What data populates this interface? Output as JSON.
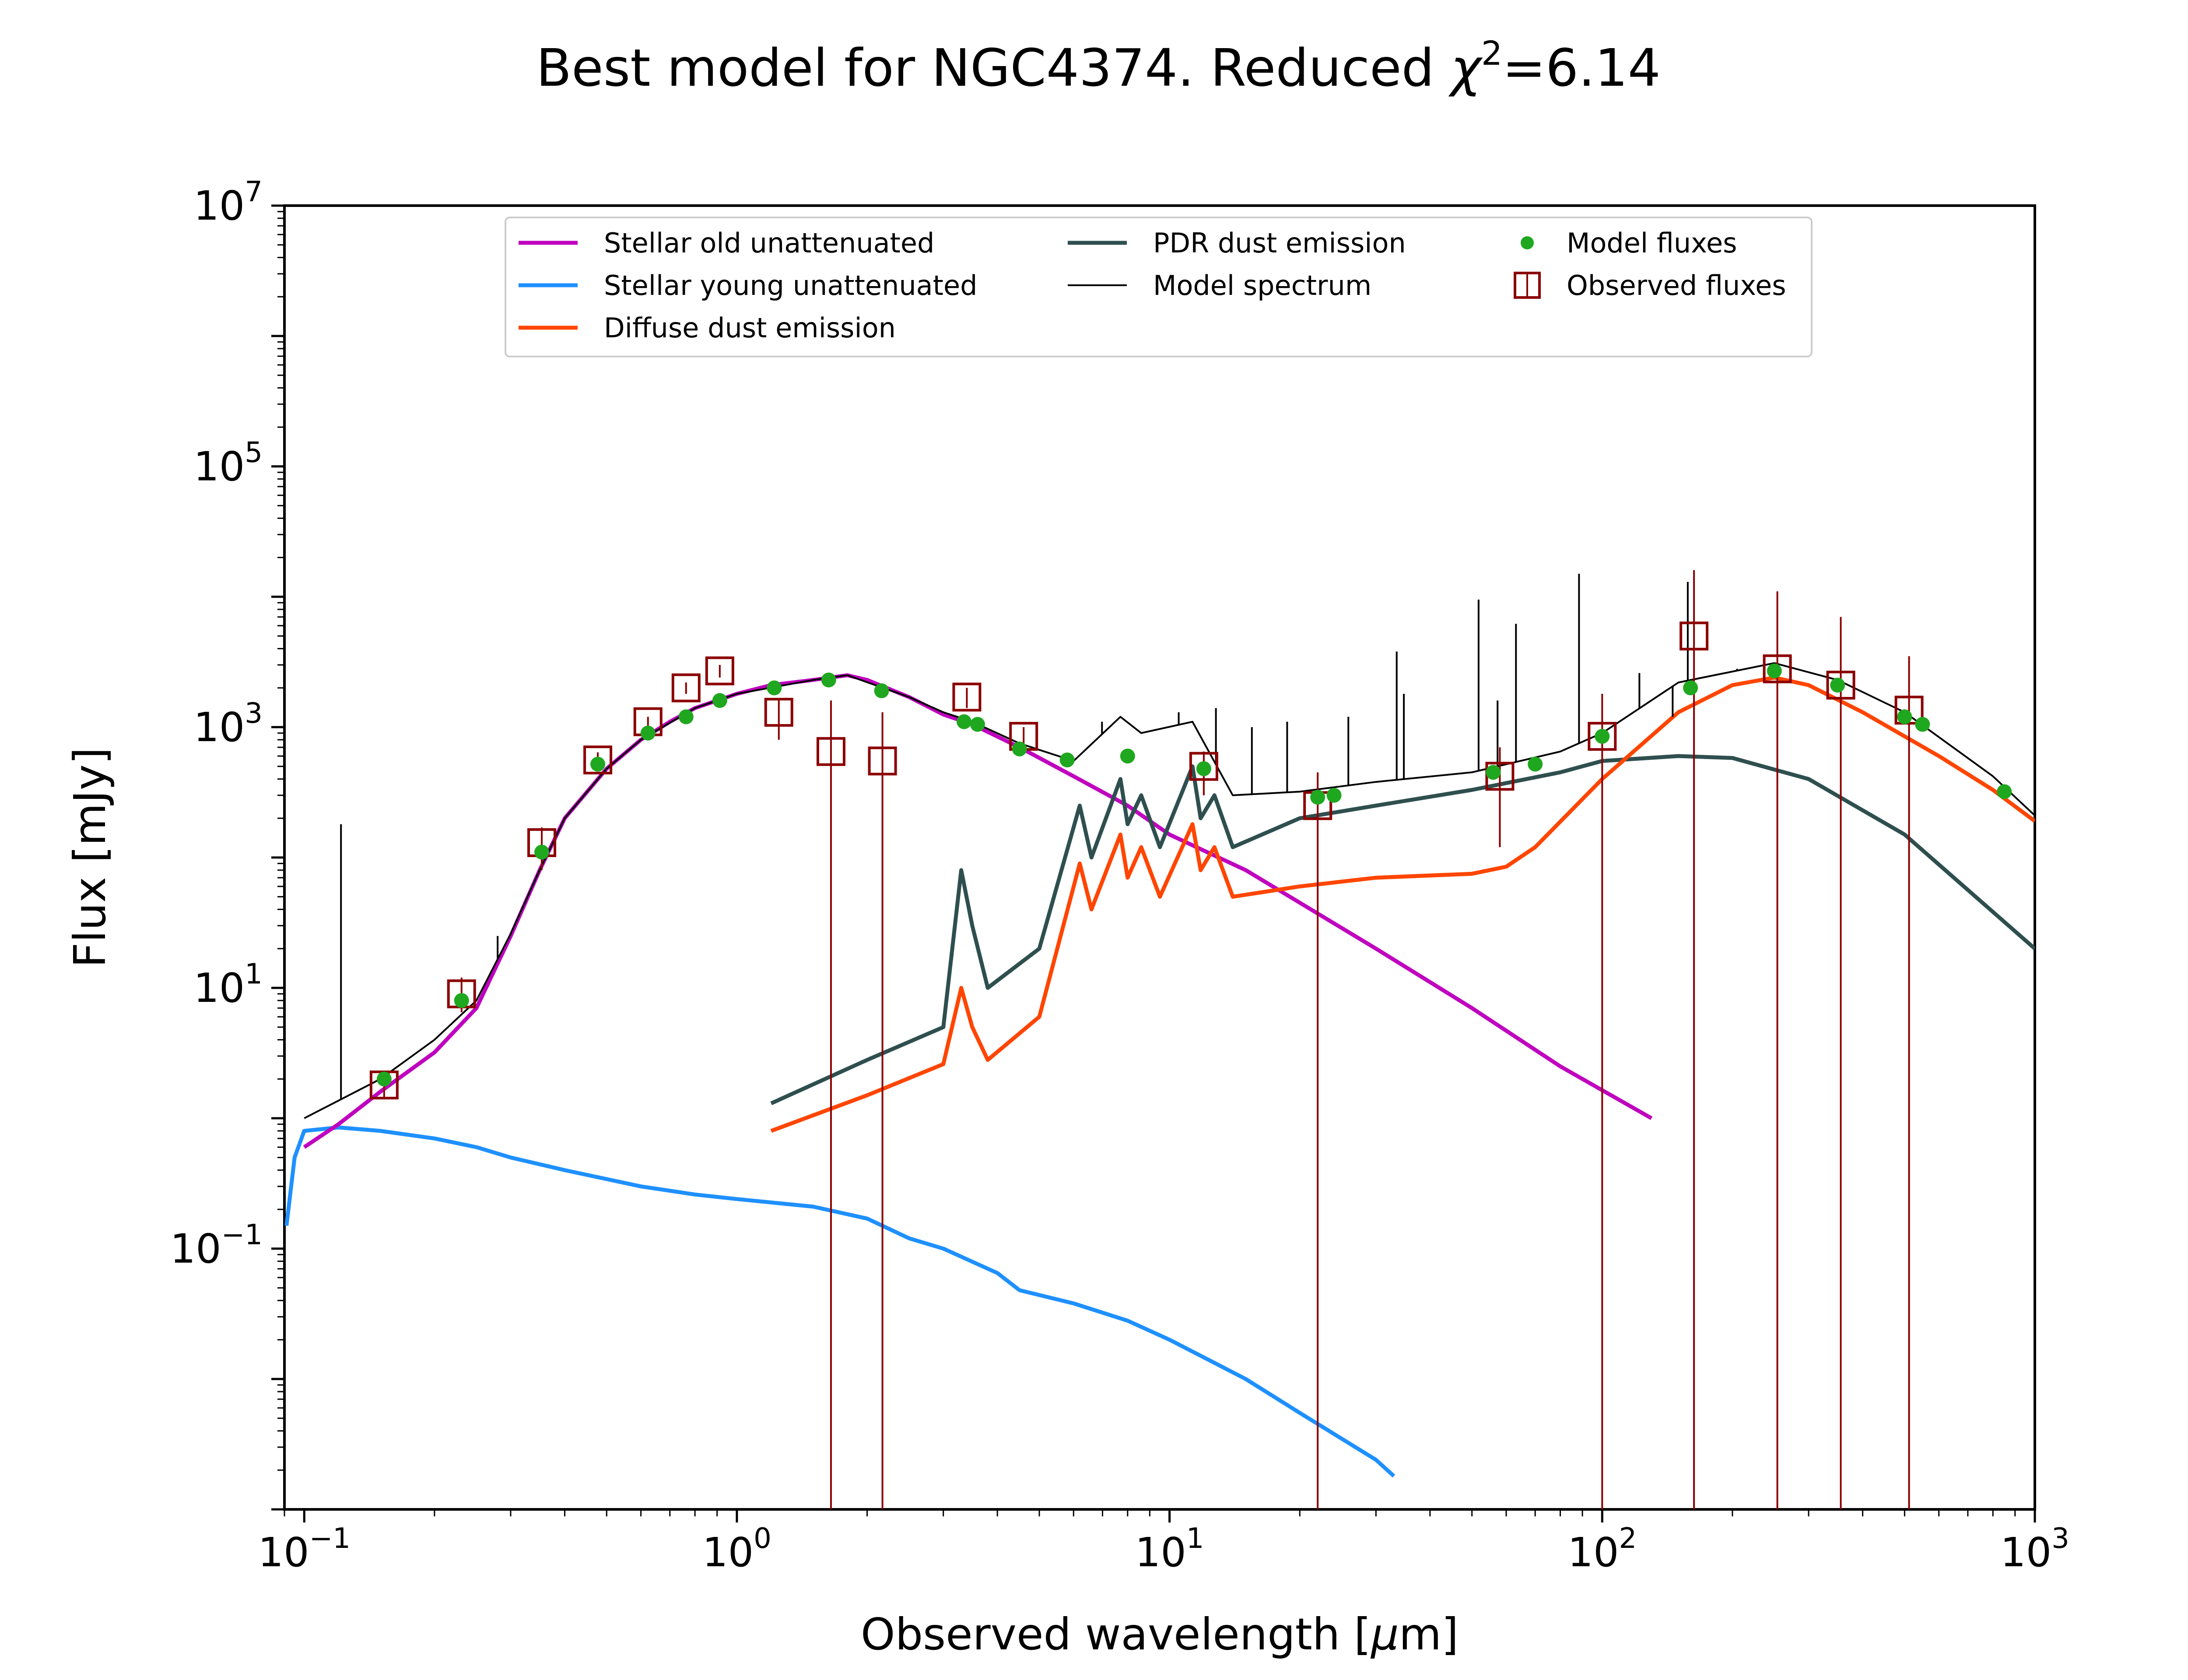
{
  "chart_data": {
    "type": "line",
    "title": "Best model for NGC4374. Reduced χ²=6.14",
    "title_parts": {
      "main": "Best model for NGC4374. Reduced ",
      "symbol": "χ",
      "sup": "2",
      "tail": "=6.14"
    },
    "xlabel": "Observed wavelength [μm]",
    "xlabel_parts": {
      "pre": "Observed wavelength [",
      "mu": "μ",
      "post": "m]"
    },
    "ylabel": "Flux [mJy]",
    "xscale": "log",
    "yscale": "log",
    "xlim": [
      0.09,
      1000
    ],
    "ylim": [
      0.001,
      10000000
    ],
    "grid": false,
    "legend_placement": "top-center",
    "x_ticks": [
      {
        "value": 0.1,
        "base": "10",
        "exp": "−1"
      },
      {
        "value": 1,
        "base": "10",
        "exp": "0"
      },
      {
        "value": 10,
        "base": "10",
        "exp": "1"
      },
      {
        "value": 100,
        "base": "10",
        "exp": "2"
      },
      {
        "value": 1000,
        "base": "10",
        "exp": "3"
      }
    ],
    "y_ticks": [
      {
        "value": 0.1,
        "base": "10",
        "exp": "−1"
      },
      {
        "value": 10,
        "base": "10",
        "exp": "1"
      },
      {
        "value": 1000,
        "base": "10",
        "exp": "3"
      },
      {
        "value": 100000,
        "base": "10",
        "exp": "5"
      },
      {
        "value": 10000000,
        "base": "10",
        "exp": "7"
      }
    ],
    "legend": [
      {
        "label": "Stellar old unattenuated",
        "kind": "line",
        "color": "#bf00bf"
      },
      {
        "label": "Stellar young unattenuated",
        "kind": "line",
        "color": "#1e90ff"
      },
      {
        "label": "Diffuse dust emission",
        "kind": "line",
        "color": "#ff4500"
      },
      {
        "label": "PDR dust emission",
        "kind": "line",
        "color": "#2f4f4f"
      },
      {
        "label": "Model spectrum",
        "kind": "thin-line",
        "color": "#000000"
      },
      {
        "label": "Model fluxes",
        "kind": "dot",
        "color": "#1fa81f"
      },
      {
        "label": "Observed fluxes",
        "kind": "square",
        "color": "#8b0000"
      }
    ],
    "series": [
      {
        "name": "Stellar old unattenuated",
        "color": "#bf00bf",
        "points": [
          [
            0.1,
            0.6
          ],
          [
            0.12,
            0.9
          ],
          [
            0.15,
            1.6
          ],
          [
            0.2,
            3.2
          ],
          [
            0.25,
            7
          ],
          [
            0.3,
            25
          ],
          [
            0.35,
            80
          ],
          [
            0.4,
            200
          ],
          [
            0.5,
            480
          ],
          [
            0.6,
            800
          ],
          [
            0.7,
            1100
          ],
          [
            0.8,
            1400
          ],
          [
            1.0,
            1800
          ],
          [
            1.2,
            2100
          ],
          [
            1.5,
            2300
          ],
          [
            1.8,
            2500
          ],
          [
            2.0,
            2300
          ],
          [
            2.5,
            1700
          ],
          [
            3.0,
            1250
          ],
          [
            3.5,
            1050
          ],
          [
            4.5,
            700
          ],
          [
            6,
            420
          ],
          [
            8,
            250
          ],
          [
            10,
            150
          ],
          [
            15,
            80
          ],
          [
            20,
            45
          ],
          [
            30,
            20
          ],
          [
            50,
            7
          ],
          [
            80,
            2.5
          ],
          [
            130,
            1.0
          ]
        ]
      },
      {
        "name": "Stellar young unattenuated",
        "color": "#1e90ff",
        "points": [
          [
            0.091,
            0.15
          ],
          [
            0.095,
            0.5
          ],
          [
            0.1,
            0.8
          ],
          [
            0.12,
            0.85
          ],
          [
            0.15,
            0.8
          ],
          [
            0.2,
            0.7
          ],
          [
            0.25,
            0.6
          ],
          [
            0.3,
            0.5
          ],
          [
            0.4,
            0.4
          ],
          [
            0.6,
            0.3
          ],
          [
            0.8,
            0.26
          ],
          [
            1.0,
            0.24
          ],
          [
            1.5,
            0.21
          ],
          [
            2.0,
            0.17
          ],
          [
            2.5,
            0.12
          ],
          [
            3,
            0.1
          ],
          [
            4,
            0.065
          ],
          [
            4.5,
            0.048
          ],
          [
            6,
            0.038
          ],
          [
            8,
            0.028
          ],
          [
            10,
            0.02
          ],
          [
            15,
            0.01
          ],
          [
            20,
            0.0055
          ],
          [
            30,
            0.0024
          ],
          [
            33,
            0.0018
          ]
        ]
      },
      {
        "name": "Diffuse dust emission",
        "color": "#ff4500",
        "points": [
          [
            1.2,
            0.8
          ],
          [
            2,
            1.5
          ],
          [
            3,
            2.6
          ],
          [
            3.3,
            10
          ],
          [
            3.5,
            5
          ],
          [
            3.8,
            2.8
          ],
          [
            5,
            6
          ],
          [
            6.2,
            90
          ],
          [
            6.6,
            40
          ],
          [
            7.7,
            150
          ],
          [
            8.0,
            70
          ],
          [
            8.6,
            120
          ],
          [
            9.5,
            50
          ],
          [
            11.3,
            180
          ],
          [
            11.8,
            80
          ],
          [
            12.7,
            120
          ],
          [
            14,
            50
          ],
          [
            20,
            60
          ],
          [
            30,
            70
          ],
          [
            50,
            75
          ],
          [
            60,
            85
          ],
          [
            70,
            120
          ],
          [
            100,
            400
          ],
          [
            150,
            1300
          ],
          [
            200,
            2100
          ],
          [
            250,
            2400
          ],
          [
            300,
            2100
          ],
          [
            400,
            1300
          ],
          [
            600,
            600
          ],
          [
            800,
            330
          ],
          [
            1000,
            190
          ]
        ]
      },
      {
        "name": "PDR dust emission",
        "color": "#2f4f4f",
        "points": [
          [
            1.2,
            1.3
          ],
          [
            2,
            2.8
          ],
          [
            3,
            5
          ],
          [
            3.3,
            80
          ],
          [
            3.5,
            30
          ],
          [
            3.8,
            10
          ],
          [
            5,
            20
          ],
          [
            6.2,
            250
          ],
          [
            6.6,
            100
          ],
          [
            7.7,
            400
          ],
          [
            8.0,
            180
          ],
          [
            8.6,
            300
          ],
          [
            9.5,
            120
          ],
          [
            11.3,
            500
          ],
          [
            11.8,
            200
          ],
          [
            12.7,
            300
          ],
          [
            14,
            120
          ],
          [
            20,
            200
          ],
          [
            30,
            250
          ],
          [
            50,
            330
          ],
          [
            80,
            450
          ],
          [
            100,
            550
          ],
          [
            150,
            600
          ],
          [
            200,
            580
          ],
          [
            300,
            400
          ],
          [
            500,
            150
          ],
          [
            1000,
            20
          ]
        ]
      },
      {
        "name": "Model spectrum",
        "color": "#000000",
        "points": [
          [
            0.1,
            1
          ],
          [
            0.15,
            2
          ],
          [
            0.2,
            4
          ],
          [
            0.25,
            8
          ],
          [
            0.3,
            26
          ],
          [
            0.35,
            80
          ],
          [
            0.4,
            200
          ],
          [
            0.5,
            480
          ],
          [
            0.6,
            800
          ],
          [
            0.8,
            1400
          ],
          [
            1.0,
            1800
          ],
          [
            1.5,
            2300
          ],
          [
            1.8,
            2500
          ],
          [
            2.5,
            1700
          ],
          [
            3.0,
            1300
          ],
          [
            3.5,
            1100
          ],
          [
            4.5,
            750
          ],
          [
            6,
            550
          ],
          [
            7.7,
            1200
          ],
          [
            8.6,
            900
          ],
          [
            11.3,
            1100
          ],
          [
            14,
            300
          ],
          [
            20,
            320
          ],
          [
            30,
            380
          ],
          [
            50,
            450
          ],
          [
            80,
            650
          ],
          [
            100,
            900
          ],
          [
            150,
            2200
          ],
          [
            250,
            3100
          ],
          [
            350,
            2300
          ],
          [
            500,
            1300
          ],
          [
            800,
            420
          ],
          [
            1000,
            210
          ]
        ]
      }
    ],
    "model_fluxes": {
      "name": "Model fluxes",
      "color": "#1fa81f",
      "points": [
        [
          0.153,
          2.0
        ],
        [
          0.231,
          8.0
        ],
        [
          0.354,
          110
        ],
        [
          0.477,
          520
        ],
        [
          0.623,
          900
        ],
        [
          0.763,
          1200
        ],
        [
          0.913,
          1600
        ],
        [
          1.22,
          2000
        ],
        [
          1.63,
          2300
        ],
        [
          2.16,
          1900
        ],
        [
          3.35,
          1100
        ],
        [
          3.6,
          1050
        ],
        [
          4.5,
          680
        ],
        [
          5.8,
          560
        ],
        [
          8.0,
          600
        ],
        [
          12,
          480
        ],
        [
          22,
          290
        ],
        [
          24,
          300
        ],
        [
          56,
          450
        ],
        [
          70,
          520
        ],
        [
          100,
          850
        ],
        [
          160,
          2000
        ],
        [
          250,
          2700
        ],
        [
          350,
          2100
        ],
        [
          500,
          1200
        ],
        [
          550,
          1050
        ],
        [
          850,
          320
        ]
      ]
    },
    "observed_fluxes": {
      "name": "Observed fluxes",
      "color": "#8b0000",
      "points": [
        {
          "x": 0.153,
          "y": 1.8,
          "err_lo": 1.4,
          "err_hi": 2.3
        },
        {
          "x": 0.231,
          "y": 9.0,
          "err_lo": 6.5,
          "err_hi": 12
        },
        {
          "x": 0.354,
          "y": 130,
          "err_lo": 80,
          "err_hi": 170
        },
        {
          "x": 0.477,
          "y": 560,
          "err_lo": 480,
          "err_hi": 640
        },
        {
          "x": 0.623,
          "y": 1100,
          "err_lo": 1000,
          "err_hi": 1200
        },
        {
          "x": 0.763,
          "y": 2000,
          "err_lo": 1800,
          "err_hi": 2200
        },
        {
          "x": 0.913,
          "y": 2700,
          "err_lo": 2400,
          "err_hi": 3000
        },
        {
          "x": 1.25,
          "y": 1300,
          "err_lo": 800,
          "err_hi": 1600
        },
        {
          "x": 1.65,
          "y": 650,
          "err_lo": 0.001,
          "err_hi": 1600
        },
        {
          "x": 2.17,
          "y": 550,
          "err_lo": 0.001,
          "err_hi": 1300
        },
        {
          "x": 3.4,
          "y": 1700,
          "err_lo": 1400,
          "err_hi": 2000
        },
        {
          "x": 4.6,
          "y": 850,
          "err_lo": 700,
          "err_hi": 1000
        },
        {
          "x": 12,
          "y": 500,
          "err_lo": 300,
          "err_hi": 650
        },
        {
          "x": 22,
          "y": 250,
          "err_lo": 0.001,
          "err_hi": 450
        },
        {
          "x": 58,
          "y": 420,
          "err_lo": 120,
          "err_hi": 700
        },
        {
          "x": 100,
          "y": 850,
          "err_lo": 0.001,
          "err_hi": 1800
        },
        {
          "x": 163,
          "y": 5000,
          "err_lo": 0.001,
          "err_hi": 16000
        },
        {
          "x": 254,
          "y": 2800,
          "err_lo": 0.001,
          "err_hi": 11000
        },
        {
          "x": 356,
          "y": 2100,
          "err_lo": 0.001,
          "err_hi": 7000
        },
        {
          "x": 512,
          "y": 1350,
          "err_lo": 0.001,
          "err_hi": 3500
        }
      ]
    },
    "emission_lines": [
      {
        "x": 0.1216,
        "y": 180
      },
      {
        "x": 0.2799,
        "y": 25
      },
      {
        "x": 6.98,
        "y": 1100
      },
      {
        "x": 10.5,
        "y": 1300
      },
      {
        "x": 12.8,
        "y": 1400
      },
      {
        "x": 15.5,
        "y": 1000
      },
      {
        "x": 18.7,
        "y": 1100
      },
      {
        "x": 25.9,
        "y": 1200
      },
      {
        "x": 33.5,
        "y": 3800
      },
      {
        "x": 34.8,
        "y": 1800
      },
      {
        "x": 51.8,
        "y": 9500
      },
      {
        "x": 57.3,
        "y": 1600
      },
      {
        "x": 63.2,
        "y": 6200
      },
      {
        "x": 88.4,
        "y": 15000
      },
      {
        "x": 121.9,
        "y": 2600
      },
      {
        "x": 145.5,
        "y": 1200
      },
      {
        "x": 157.7,
        "y": 13000
      },
      {
        "x": 205,
        "y": 2800
      }
    ]
  }
}
